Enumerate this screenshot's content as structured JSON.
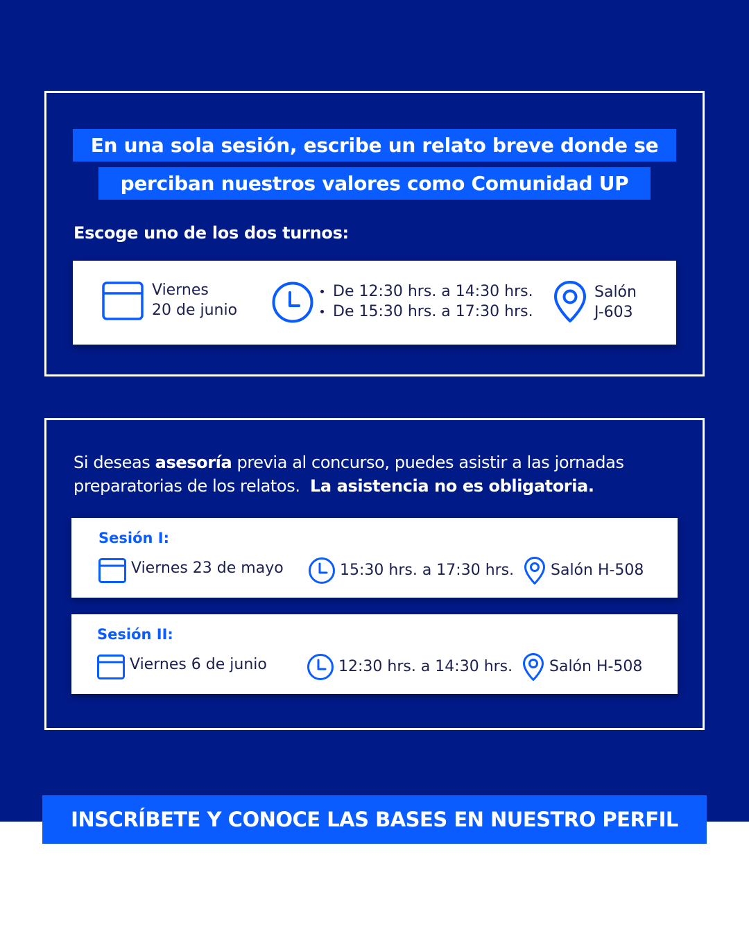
{
  "colors": {
    "navy": "#001a88",
    "accent_blue": "#0a5cff",
    "white": "#ffffff",
    "text_dark": "#1b2050"
  },
  "headline": {
    "line1": "En una sola sesión, escribe un relato breve donde se",
    "line2": "perciban nuestros valores como Comunidad UP"
  },
  "subhead": "Escoge uno de los dos turnos:",
  "main_card": {
    "date_line1": "Viernes",
    "date_line2": "20 de junio",
    "time_slots": [
      "De 12:30 hrs. a 14:30 hrs.",
      "De 15:30 hrs. a 17:30 hrs."
    ],
    "place_line1": "Salón",
    "place_line2": "J-603",
    "icons": [
      "calendar-icon",
      "clock-icon",
      "location-pin-icon"
    ]
  },
  "intro": {
    "part1": "Si deseas ",
    "bold1": "asesoría",
    "part2": " previa al concurso, puedes asistir a las jornadas",
    "part3": "preparatorias de los relatos.  ",
    "bold2": "La asistencia no es obligatoria."
  },
  "sessions": [
    {
      "title": "Sesión I:",
      "date": "Viernes 23 de mayo",
      "time": "15:30 hrs. a 17:30 hrs.",
      "place": "Salón H-508"
    },
    {
      "title": "Sesión II:",
      "date": "Viernes 6 de junio",
      "time": "12:30 hrs. a 14:30 hrs.",
      "place": "Salón H-508"
    }
  ],
  "cta": "INSCRÍBETE Y CONOCE LAS BASES EN NUESTRO PERFIL"
}
